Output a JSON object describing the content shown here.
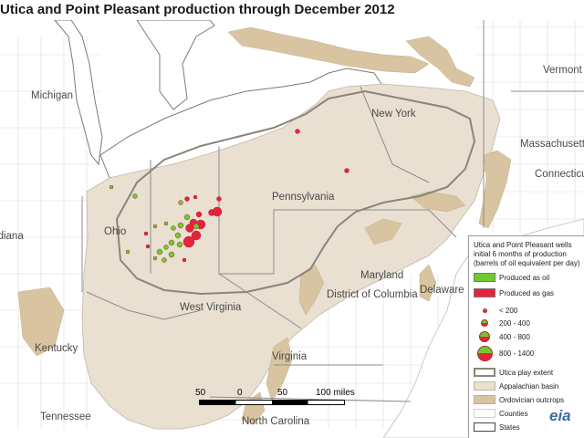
{
  "title": "Utica and Point Pleasant production through December 2012",
  "states": {
    "michigan": "Michigan",
    "new_york": "New York",
    "pennsylvania": "Pennsylvania",
    "ohio": "Ohio",
    "indiana": "Indiana",
    "west_virginia": "West Virginia",
    "virginia": "Virginia",
    "kentucky": "Kentucky",
    "tennessee": "Tennessee",
    "north_carolina": "North Carolina",
    "maryland": "Maryland",
    "delaware": "Delaware",
    "dc": "District of Columbia",
    "vermont": "Vermont",
    "massachusetts": "Massachusetts",
    "connecticut": "Connecticut"
  },
  "legend": {
    "heading": "Utica and Point Pleasant wells initial 6 months of production (barrels of oil equivalent per day)",
    "produced_oil": "Produced as oil",
    "produced_gas": "Produced as gas",
    "size_lt200": "< 200",
    "size_200_400": "200 - 400",
    "size_400_800": "400 - 800",
    "size_800_1400": "800 - 1400",
    "utica_extent": "Utica play extent",
    "appalachian": "Appalachian basin",
    "ordovician": "Ordovician outcrops",
    "counties": "Counties",
    "states": "States"
  },
  "scale": {
    "t1": "50",
    "t2": "0",
    "t3": "50",
    "t4": "100 miles"
  },
  "logo": "eia",
  "colors": {
    "oil": "#6ecb2e",
    "gas": "#e8223e",
    "basin": "#e9e0d2",
    "outcrop": "#d8c4a0",
    "extent_line": "#8a8678",
    "lake": "#ffffff"
  }
}
